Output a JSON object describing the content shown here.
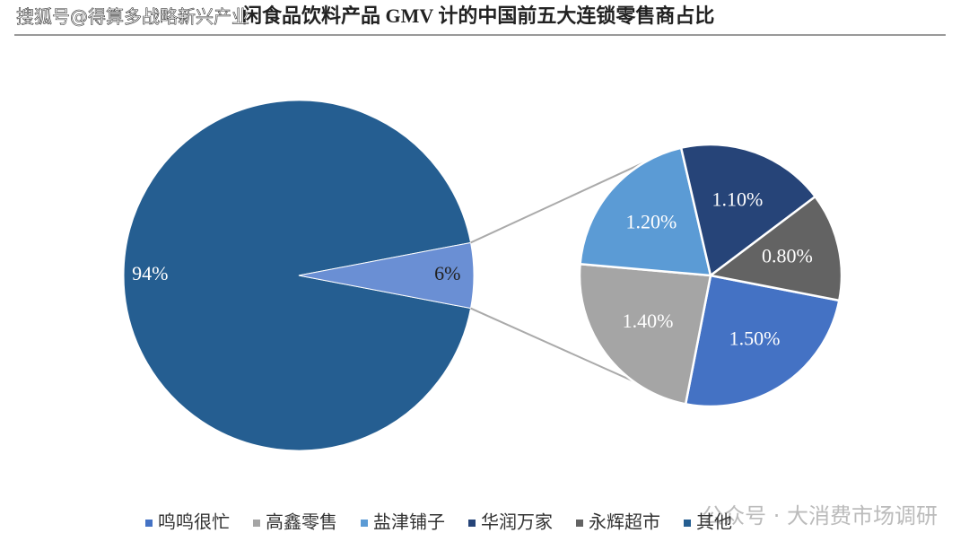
{
  "chart_data": {
    "type": "pie-of-pie",
    "title": "闲食品饮料产品 GMV 计的中国前五大连锁零售商占比",
    "watermarks": [
      "搜狐号@得算多战略新兴产业",
      "公众号 · 大消费市场调研"
    ],
    "main_values": [
      94,
      6
    ],
    "main_value_labels": [
      "94%",
      "6%"
    ],
    "main_colors": [
      "#255e91",
      "#6a8fd4"
    ],
    "categories": [
      "鸣鸣很忙",
      "高鑫零售",
      "盐津铺子",
      "华润万家",
      "永辉超市",
      "其他"
    ],
    "colors": [
      "#4472c4",
      "#a5a5a5",
      "#5b9bd5",
      "#264478",
      "#636363",
      "#255e91"
    ],
    "sub_values": [
      1.5,
      1.4,
      1.2,
      1.1,
      0.8
    ],
    "sub_value_labels": [
      "1.50%",
      "1.40%",
      "1.20%",
      "1.10%",
      "0.80%"
    ]
  }
}
